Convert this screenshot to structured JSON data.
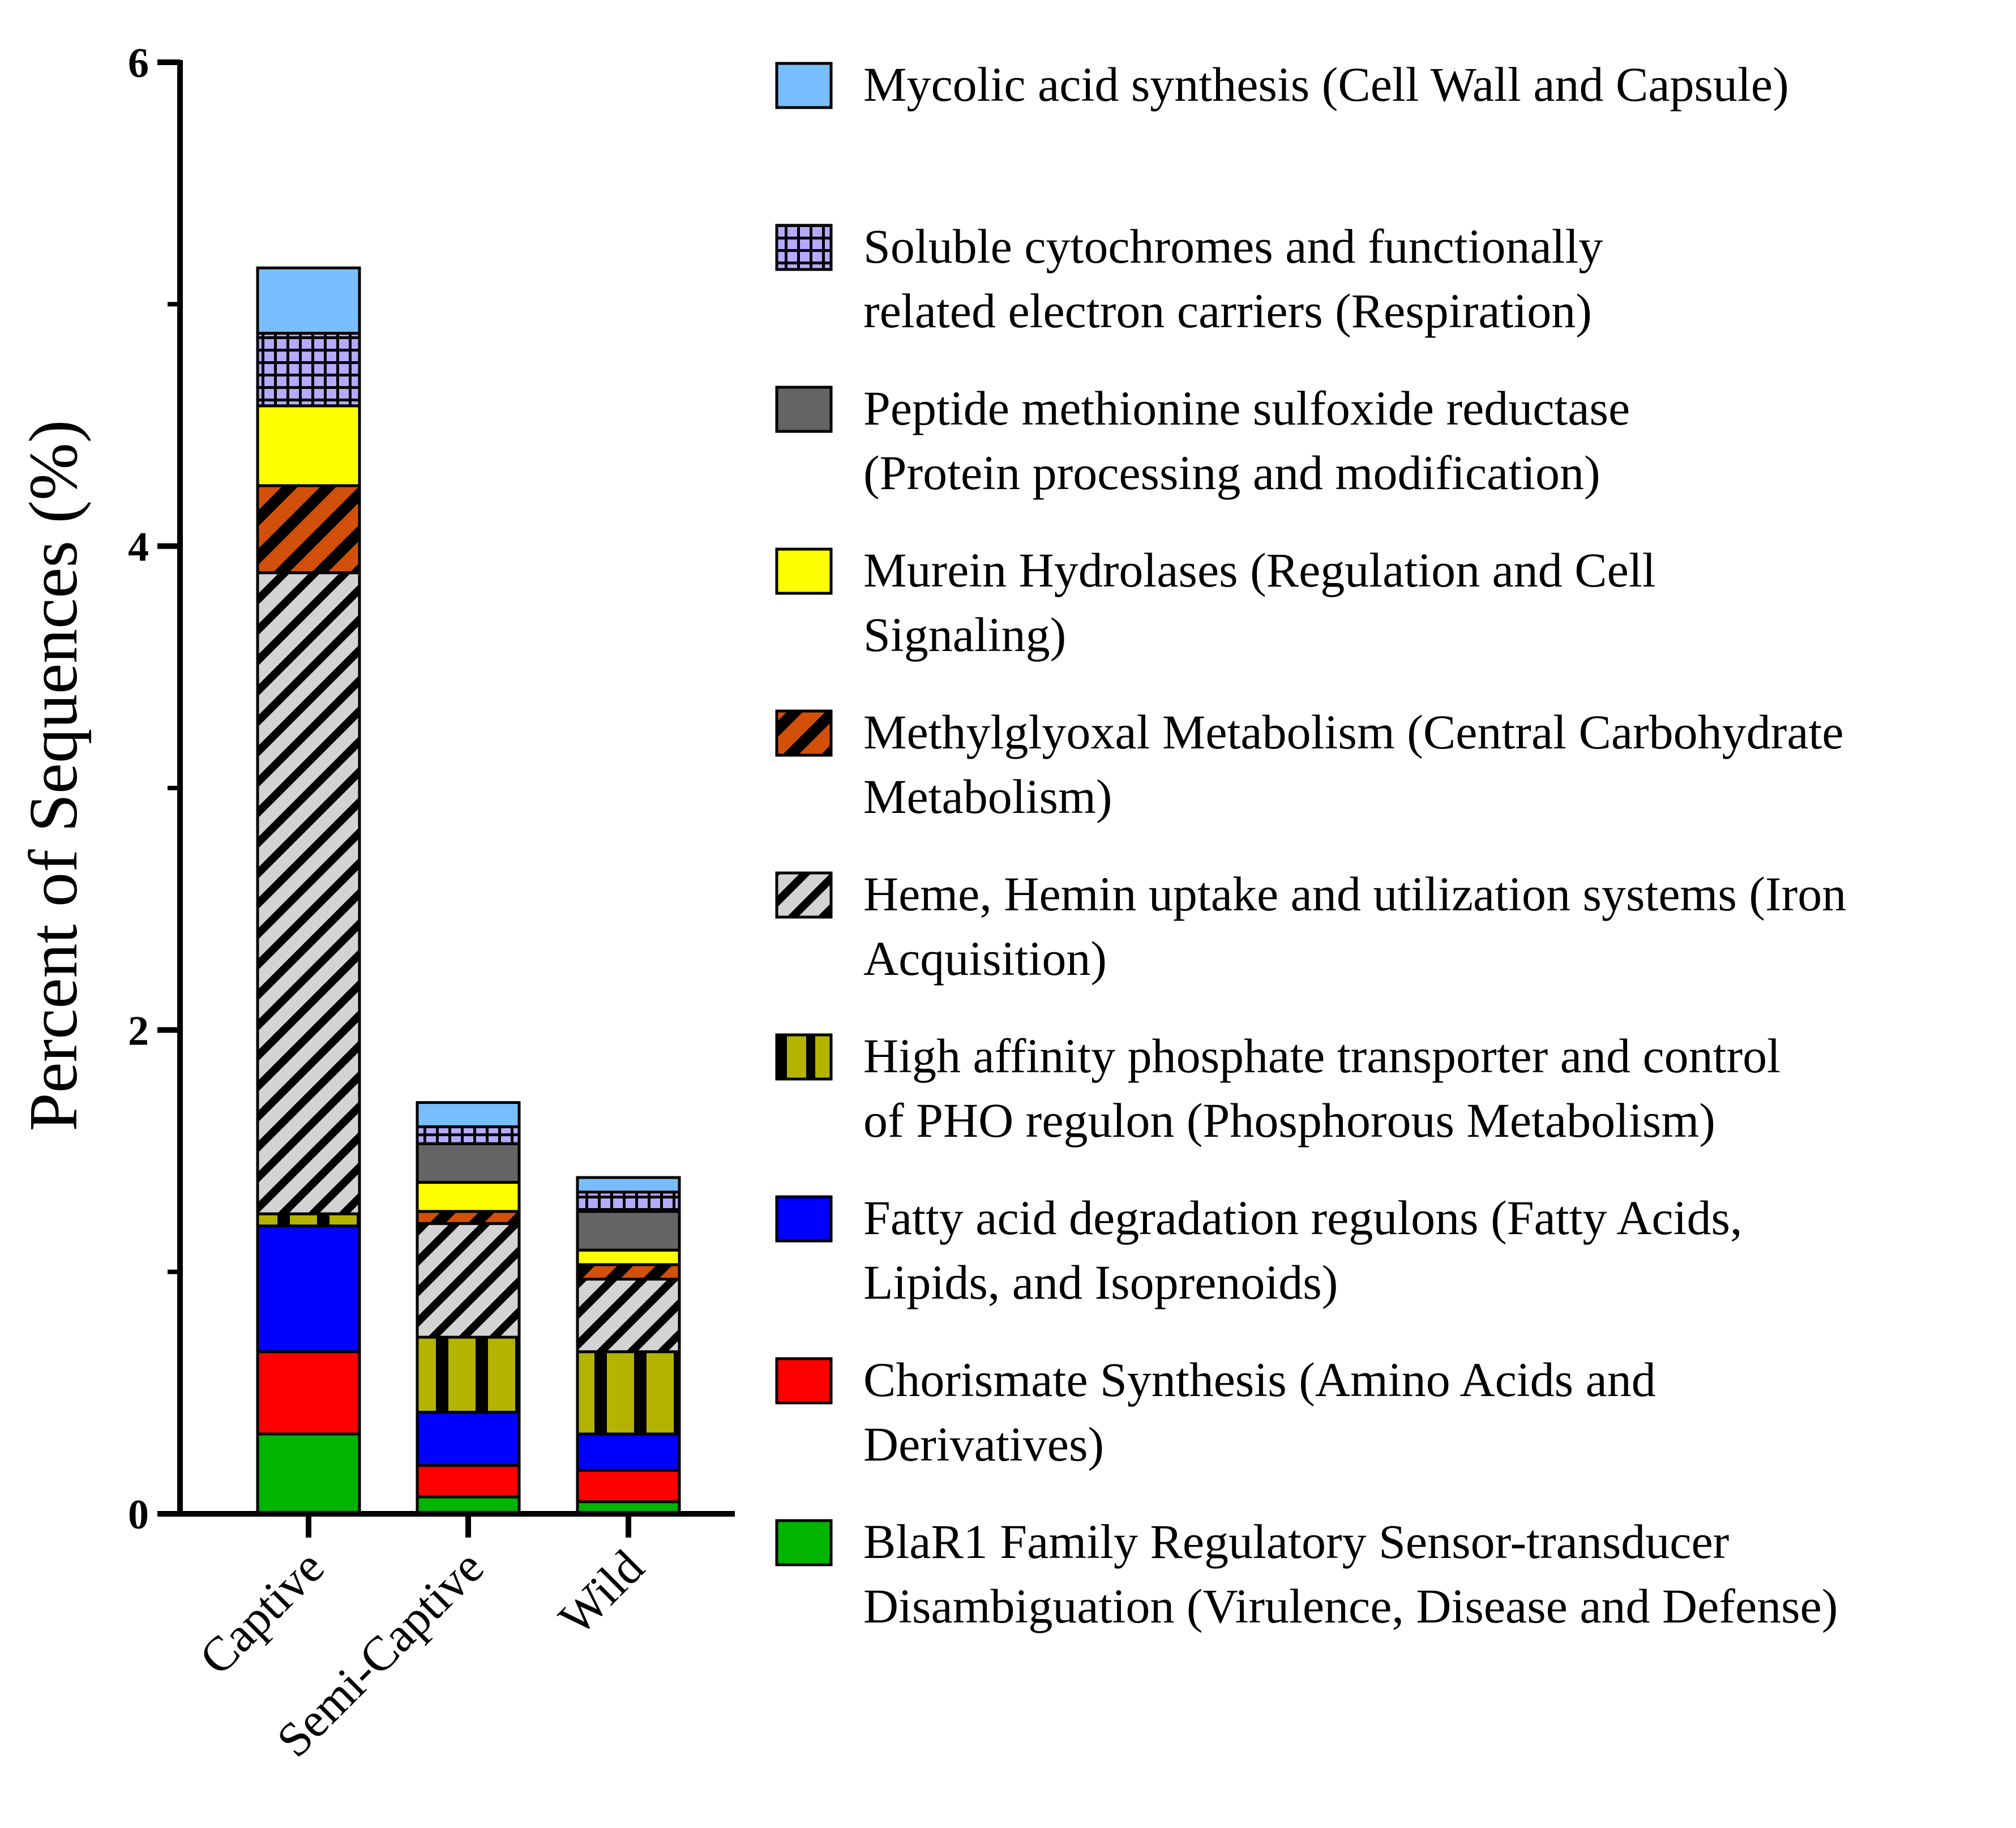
{
  "chart_data": {
    "type": "bar",
    "stacked": true,
    "title": "",
    "xlabel": "",
    "ylabel": "Percent of Sequences (%)",
    "ylim": [
      0,
      6
    ],
    "yticks": [
      0,
      2,
      4,
      6
    ],
    "ytick_labels": [
      "0",
      "2",
      "4",
      "6"
    ],
    "legend_position": "right",
    "categories": [
      "Captive",
      "Semi-Captive",
      "Wild"
    ],
    "series": [
      {
        "name": "BlaR1 Family Regulatory Sensor-transducer Disambiguation (Virulence, Disease and Defense)",
        "label_lines": [
          "BlaR1 Family Regulatory Sensor-transducer",
          "Disambiguation (Virulence, Disease and Defense)"
        ],
        "color": "#00b400",
        "pattern": "solid",
        "values": [
          0.33,
          0.07,
          0.05
        ]
      },
      {
        "name": "Chorismate Synthesis (Amino Acids and Derivatives)",
        "label_lines": [
          "Chorismate Synthesis (Amino Acids and",
          "Derivatives)"
        ],
        "color": "#ff0000",
        "pattern": "solid",
        "values": [
          0.34,
          0.13,
          0.13
        ]
      },
      {
        "name": "Fatty acid degradation regulons (Fatty Acids, Lipids, and Isoprenoids)",
        "label_lines": [
          "Fatty acid degradation regulons (Fatty Acids,",
          "Lipids, and Isoprenoids)"
        ],
        "color": "#0000ff",
        "pattern": "solid",
        "values": [
          0.52,
          0.22,
          0.15
        ]
      },
      {
        "name": "High affinity phosphate transporter and control of PHO regulon (Phosphorous Metabolism)",
        "label_lines": [
          "High affinity phosphate transporter and control",
          "of PHO regulon (Phosphorous Metabolism)"
        ],
        "color": "#b4b400",
        "pattern": "vertical-stripes",
        "values": [
          0.05,
          0.31,
          0.34
        ]
      },
      {
        "name": "Heme, Hemin uptake and utilization systems (Iron Acquisition)",
        "label_lines": [
          "Heme, Hemin uptake and utilization systems (Iron",
          "Acquisition)"
        ],
        "color": "#d3d3d3",
        "pattern": "diagonal-stripes",
        "values": [
          2.65,
          0.47,
          0.3
        ]
      },
      {
        "name": "Methylglyoxal Metabolism (Central Carbohydrate Metabolism)",
        "label_lines": [
          "Methylglyoxal Metabolism (Central Carbohydrate",
          "Metabolism)"
        ],
        "color": "#d2500a",
        "pattern": "diagonal-stripes",
        "values": [
          0.36,
          0.05,
          0.06
        ]
      },
      {
        "name": "Murein Hydrolases (Regulation and Cell Signaling)",
        "label_lines": [
          "Murein Hydrolases (Regulation and Cell",
          "Signaling)"
        ],
        "color": "#ffff00",
        "pattern": "solid",
        "values": [
          0.33,
          0.12,
          0.06
        ]
      },
      {
        "name": "Peptide methionine sulfoxide reductase (Protein processing and modification)",
        "label_lines": [
          "Peptide methionine sulfoxide reductase",
          "(Protein processing and modification)"
        ],
        "color": "#646464",
        "pattern": "solid",
        "values": [
          0.0,
          0.16,
          0.16
        ]
      },
      {
        "name": "Soluble cytochromes and functionally related electron carriers (Respiration)",
        "label_lines": [
          "Soluble cytochromes and functionally",
          "related electron carriers (Respiration)"
        ],
        "color": "#b4aaff",
        "pattern": "grid",
        "values": [
          0.3,
          0.07,
          0.08
        ]
      },
      {
        "name": "Mycolic acid synthesis (Cell Wall and Capsule)",
        "label_lines": [
          "Mycolic acid synthesis (Cell Wall and Capsule)"
        ],
        "color": "#78beff",
        "pattern": "solid",
        "values": [
          0.27,
          0.1,
          0.06
        ]
      }
    ]
  }
}
